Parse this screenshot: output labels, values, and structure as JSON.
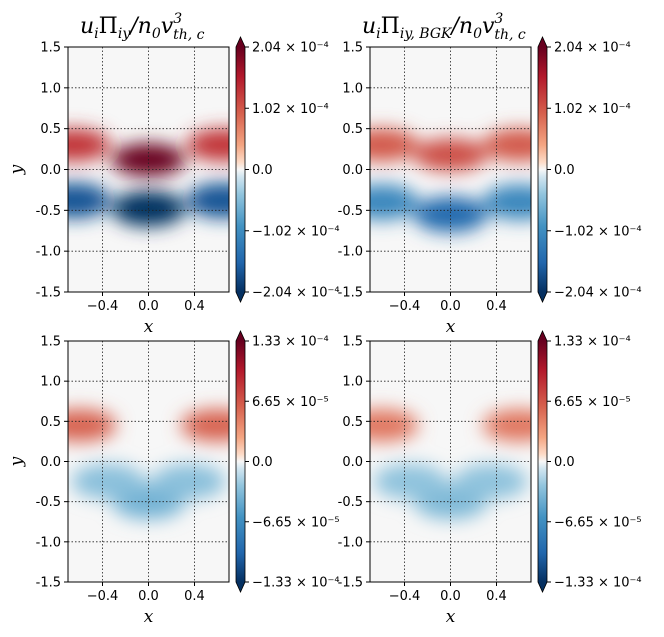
{
  "colors": {
    "negative_extreme": "#053061",
    "negative_mid": "#4393c3",
    "zero": "#f7f7f7",
    "positive_mid": "#f4a582",
    "positive_extreme": "#67001f"
  },
  "titles": {
    "left": {
      "main": "u",
      "sub1": "i",
      "mid": "Π",
      "sub2": "iy",
      "rest": "/n",
      "sub3": "0",
      "v": "v",
      "sup": "3",
      "sub4": "th, c"
    },
    "right": {
      "main": "u",
      "sub1": "i",
      "mid": "Π",
      "sub2": "iy, BGK",
      "rest": "/n",
      "sub3": "0",
      "v": "v",
      "sup": "3",
      "sub4": "th, c"
    }
  },
  "chart_data": [
    {
      "type": "heatmap",
      "panel": "top-left",
      "title": "u_i Π_iy / n_0 v^3_th,c",
      "xlabel": "x",
      "ylabel": "y",
      "xlim": [
        -0.7,
        0.7
      ],
      "ylim": [
        -1.5,
        1.5
      ],
      "xticks": [
        "-0.4",
        "0.0",
        "0.4"
      ],
      "yticks": [
        "1.5",
        "1.0",
        "0.5",
        "0.0",
        "-0.5",
        "-1.0",
        "-1.5"
      ],
      "grid": true,
      "colorbar": {
        "min": -0.000204,
        "max": 0.000204,
        "ticks": [
          "2.04 × 10⁻⁴",
          "1.02 × 10⁻⁴",
          "0.0",
          "−1.02 × 10⁻⁴",
          "−2.04 × 10⁻⁴"
        ]
      },
      "features": [
        {
          "x": 0.0,
          "y": 0.12,
          "value": 0.000204
        },
        {
          "x": -0.65,
          "y": 0.3,
          "value": 0.00013
        },
        {
          "x": 0.65,
          "y": 0.3,
          "value": 0.00013
        },
        {
          "x": 0.0,
          "y": -0.48,
          "value": -0.000204
        },
        {
          "x": -0.65,
          "y": -0.38,
          "value": -0.00017
        },
        {
          "x": 0.65,
          "y": -0.38,
          "value": -0.00017
        }
      ]
    },
    {
      "type": "heatmap",
      "panel": "top-right",
      "title": "u_i Π_iy,BGK / n_0 v^3_th,c",
      "xlabel": "x",
      "ylabel": "",
      "xlim": [
        -0.7,
        0.7
      ],
      "ylim": [
        -1.5,
        1.5
      ],
      "xticks": [
        "-0.4",
        "0.0",
        "0.4"
      ],
      "yticks": [
        "1.5",
        "1.0",
        "0.5",
        "0.0",
        "-0.5",
        "-1.0",
        "-1.5"
      ],
      "grid": true,
      "colorbar": {
        "min": -0.000204,
        "max": 0.000204,
        "ticks": [
          "2.04 × 10⁻⁴",
          "1.02 × 10⁻⁴",
          "0.0",
          "−1.02 × 10⁻⁴",
          "−2.04 × 10⁻⁴"
        ]
      },
      "features": [
        {
          "x": 0.0,
          "y": 0.18,
          "value": 0.00011
        },
        {
          "x": -0.6,
          "y": 0.3,
          "value": 0.0001
        },
        {
          "x": 0.6,
          "y": 0.3,
          "value": 0.0001
        },
        {
          "x": 0.0,
          "y": -0.55,
          "value": -0.00015
        },
        {
          "x": -0.6,
          "y": -0.4,
          "value": -0.00011
        },
        {
          "x": 0.6,
          "y": -0.4,
          "value": -0.00011
        }
      ]
    },
    {
      "type": "heatmap",
      "panel": "bottom-left",
      "title": "",
      "xlabel": "x",
      "ylabel": "y",
      "xlim": [
        -0.7,
        0.7
      ],
      "ylim": [
        -1.5,
        1.5
      ],
      "xticks": [
        "-0.4",
        "0.0",
        "0.4"
      ],
      "yticks": [
        "1.5",
        "1.0",
        "0.5",
        "0.0",
        "-0.5",
        "-1.0",
        "-1.5"
      ],
      "grid": true,
      "colorbar": {
        "min": -0.000133,
        "max": 0.000133,
        "ticks": [
          "1.33 × 10⁻⁴",
          "6.65 × 10⁻⁵",
          "0.0",
          "−6.65 × 10⁻⁵",
          "−1.33 × 10⁻⁴"
        ]
      },
      "features": [
        {
          "x": -0.6,
          "y": 0.45,
          "value": 6e-05
        },
        {
          "x": 0.6,
          "y": 0.45,
          "value": 6e-05
        },
        {
          "x": 0.0,
          "y": -0.5,
          "value": -4e-05
        },
        {
          "x": -0.35,
          "y": -0.25,
          "value": -3e-05
        },
        {
          "x": 0.35,
          "y": -0.25,
          "value": -3e-05
        }
      ]
    },
    {
      "type": "heatmap",
      "panel": "bottom-right",
      "title": "",
      "xlabel": "x",
      "ylabel": "",
      "xlim": [
        -0.7,
        0.7
      ],
      "ylim": [
        -1.5,
        1.5
      ],
      "xticks": [
        "-0.4",
        "0.0",
        "0.4"
      ],
      "yticks": [
        "1.5",
        "1.0",
        "0.5",
        "0.0",
        "-0.5",
        "-1.0",
        "-1.5"
      ],
      "grid": true,
      "colorbar": {
        "min": -0.000133,
        "max": 0.000133,
        "ticks": [
          "1.33 × 10⁻⁴",
          "6.65 × 10⁻⁵",
          "0.0",
          "−6.65 × 10⁻⁵",
          "−1.33 × 10⁻⁴"
        ]
      },
      "features": [
        {
          "x": -0.6,
          "y": 0.45,
          "value": 5e-05
        },
        {
          "x": 0.6,
          "y": 0.45,
          "value": 5e-05
        },
        {
          "x": 0.0,
          "y": -0.5,
          "value": -3.5e-05
        },
        {
          "x": -0.35,
          "y": -0.25,
          "value": -2.8e-05
        },
        {
          "x": 0.35,
          "y": -0.25,
          "value": -2.8e-05
        }
      ]
    }
  ]
}
